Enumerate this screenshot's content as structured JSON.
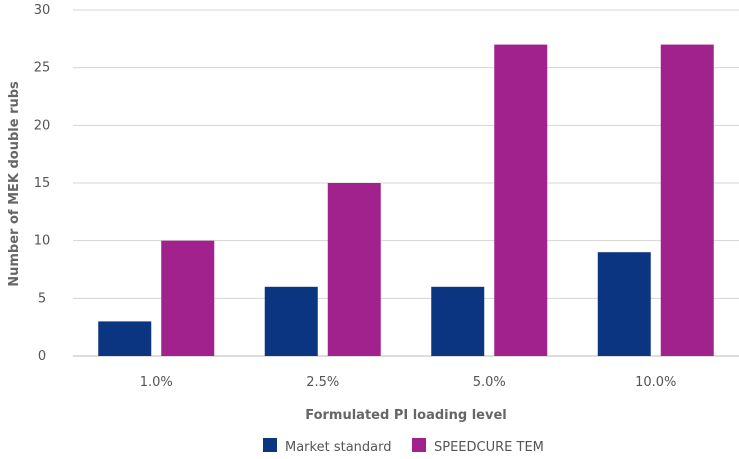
{
  "chart_data": {
    "type": "bar",
    "categories": [
      "1.0%",
      "2.5%",
      "5.0%",
      "10.0%"
    ],
    "series": [
      {
        "name": "Market standard",
        "values": [
          3,
          6,
          6,
          9
        ],
        "color": "#0b3580"
      },
      {
        "name": "SPEEDCURE TEM",
        "values": [
          10,
          15,
          27,
          27
        ],
        "color": "#a1228d"
      }
    ],
    "xlabel": "Formulated PI loading level",
    "ylabel": "Number of MEK double rubs",
    "ylim": [
      0,
      30
    ],
    "yticks": [
      0,
      5,
      10,
      15,
      20,
      25,
      30
    ],
    "grid": true,
    "legend": "bottom-center"
  }
}
